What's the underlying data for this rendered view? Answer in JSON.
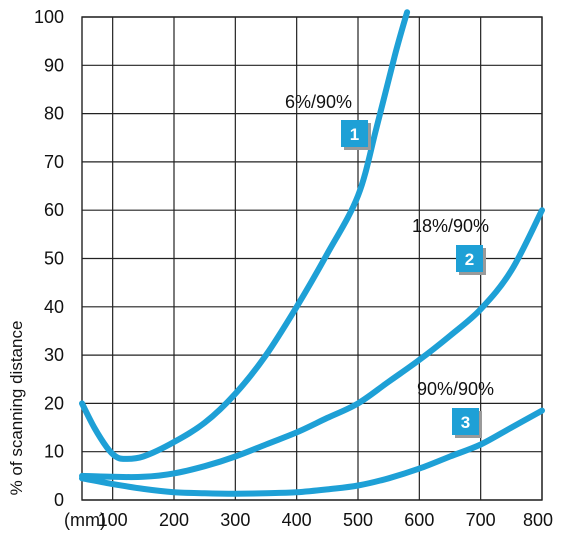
{
  "chart_data": {
    "type": "line",
    "title": "",
    "xlabel": "",
    "ylabel": "% of scanning distance",
    "x_unit_label": "(mm)",
    "x_ticks": [
      "100",
      "200",
      "300",
      "400",
      "500",
      "600",
      "700",
      "800"
    ],
    "y_ticks": [
      "0",
      "10",
      "20",
      "30",
      "40",
      "50",
      "60",
      "70",
      "80",
      "90",
      "100"
    ],
    "xlim": [
      50,
      800
    ],
    "ylim": [
      0,
      100
    ],
    "grid": true,
    "line_color": "#1ea0d6",
    "marker_color": "#1ea0d6",
    "series": [
      {
        "marker": "1",
        "label": "6%/90%",
        "x": [
          50,
          70,
          90,
          105,
          120,
          150,
          200,
          250,
          300,
          350,
          400,
          450,
          500,
          530,
          560,
          580
        ],
        "y": [
          20,
          15,
          11,
          9,
          8.5,
          9,
          12,
          16,
          22,
          30,
          40,
          51,
          63,
          77,
          92,
          101
        ]
      },
      {
        "marker": "2",
        "label": "18%/90%",
        "x": [
          50,
          100,
          150,
          200,
          250,
          300,
          350,
          400,
          450,
          500,
          550,
          600,
          650,
          700,
          750,
          800
        ],
        "y": [
          5,
          4.8,
          4.8,
          5.5,
          7,
          9,
          11.5,
          14,
          17,
          20,
          24.5,
          29,
          34,
          39.5,
          47.5,
          60
        ]
      },
      {
        "marker": "3",
        "label": "90%/90%",
        "x": [
          50,
          100,
          150,
          200,
          250,
          300,
          350,
          400,
          450,
          500,
          550,
          600,
          650,
          700,
          750,
          800
        ],
        "y": [
          4.5,
          3.3,
          2.3,
          1.6,
          1.4,
          1.3,
          1.4,
          1.6,
          2.2,
          3,
          4.5,
          6.5,
          9,
          11.5,
          15,
          18.5
        ]
      }
    ]
  }
}
